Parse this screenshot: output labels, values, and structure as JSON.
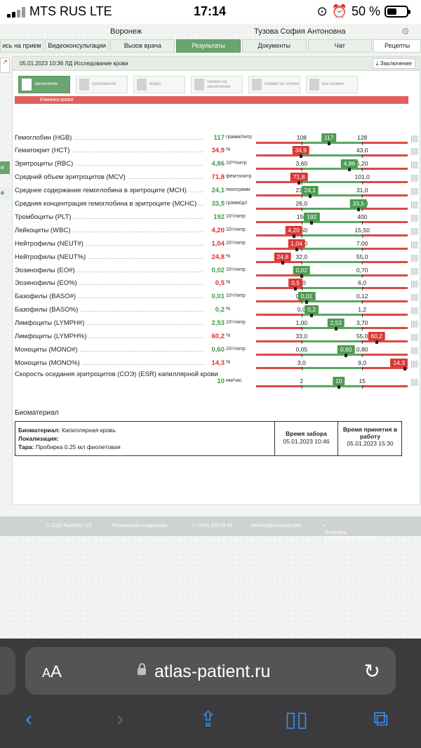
{
  "status": {
    "carrier": "MTS RUS  LTE",
    "time": "17:14",
    "battery": "50 %",
    "battery_level": 0.5
  },
  "header": {
    "city": "Воронеж",
    "user": "Тузова София Антоновна"
  },
  "nav": [
    "ись на прием",
    "Видеоконсультации",
    "Вызов врача",
    "Результаты",
    "Документы",
    "Чат",
    "Рецепты"
  ],
  "panel": {
    "title": "05.01.2023 10:36 ЛД Исследование крови",
    "conclusion_btn": "Заключение",
    "tabs": [
      "заключение",
      "приложения",
      "видео",
      "снимки на заключении",
      "снимки на пленке",
      "все снимки"
    ],
    "section": "Клиника крови"
  },
  "rows": [
    {
      "name": "Гемоглобин (HGB)",
      "value": "117",
      "unit": "грамм/литр",
      "status": "green",
      "low": "108",
      "high": "128"
    },
    {
      "name": "Гематокрит (HCT)",
      "value": "34,9",
      "unit": "%",
      "status": "red",
      "low": "35,0",
      "high": "43,0"
    },
    {
      "name": "Эритроциты (RBC)",
      "value": "4,86",
      "unit": "10¹²/литр",
      "status": "green",
      "low": "3,60",
      "high": "5,20"
    },
    {
      "name": "Средний объем эритроцитов (MCV)",
      "value": "71,8",
      "unit": "фемтолитр",
      "status": "red",
      "low": "73,0",
      "high": "101,0"
    },
    {
      "name": "Среднее содержание гемоглобина в эритроците (MCH)",
      "value": "24,1",
      "unit": "пикограмм",
      "status": "green",
      "low": "23,0",
      "high": "31,0"
    },
    {
      "name": "Средняя концентрация гемоглобина в эритроците (MCHC)",
      "value": "33,5",
      "unit": "грамм/дл",
      "status": "green",
      "low": "26,0",
      "high": "34,0"
    },
    {
      "name": "Тромбоциты (PLT)",
      "value": "192",
      "unit": "10⁹/литр",
      "status": "green",
      "low": "150",
      "high": "400"
    },
    {
      "name": "Лейкоциты (WBC)",
      "value": "4,20",
      "unit": "10⁹/литр",
      "status": "red",
      "low": "5,50",
      "high": "15,50"
    },
    {
      "name": "Нейтрофилы (NEUT#)",
      "value": "1,04",
      "unit": "10⁹/литр",
      "status": "red",
      "low": "1,50",
      "high": "7,00"
    },
    {
      "name": "Нейтрофилы (NEUT%)",
      "value": "24,8",
      "unit": "%",
      "status": "red",
      "low": "32,0",
      "high": "55,0"
    },
    {
      "name": "Эозинофилы (EO#)",
      "value": "0,02",
      "unit": "10⁹/литр",
      "status": "green",
      "low": "0,02",
      "high": "0,70"
    },
    {
      "name": "Эозинофилы (EO%)",
      "value": "0,5",
      "unit": "%",
      "status": "red",
      "low": "1,0",
      "high": "6,0"
    },
    {
      "name": "Базофилы (BASO#)",
      "value": "0,01",
      "unit": "10⁹/литр",
      "status": "green",
      "low": "0,00",
      "high": "0,12"
    },
    {
      "name": "Базофилы (BASO%)",
      "value": "0,2",
      "unit": "%",
      "status": "green",
      "low": "0,0",
      "high": "1,2"
    },
    {
      "name": "Лимфоциты (LYMPH#)",
      "value": "2,53",
      "unit": "10⁹/литр",
      "status": "green",
      "low": "1,00",
      "high": "3,70"
    },
    {
      "name": "Лимфоциты (LYMPH%)",
      "value": "60,2",
      "unit": "%",
      "status": "red",
      "low": "33,0",
      "high": "55,0"
    },
    {
      "name": "Моноциты (MONO#)",
      "value": "0,60",
      "unit": "10⁹/литр",
      "status": "green",
      "low": "0,05",
      "high": "0,80"
    },
    {
      "name": "Моноциты (MONO%)",
      "value": "14,3",
      "unit": "%",
      "status": "red",
      "low": "3,0",
      "high": "9,0"
    }
  ],
  "esr": {
    "name": "Скорость оседания эритроцитов (СОЭ) (ESR) капиллярной крови",
    "value": "10",
    "unit": "мм/час",
    "status": "green",
    "low": "2",
    "high": "15"
  },
  "biomaterial": {
    "title": "Биоматериал",
    "material_label": "Биоматериал:",
    "material_value": "Капиллярная кровь",
    "localization_label": "Локализация:",
    "container_label": "Тара:",
    "container_value": "Пробирка 0.25 мл фиолетовая",
    "collect_label": "Время забора",
    "collect_time": "05.01.2023 10:46",
    "accept_label": "Время принятия в работу",
    "accept_time": "05.01.2023 15:30"
  },
  "footer": [
    "© 2023 Numedy LLC",
    "Техническая поддержка:",
    "+7 (800) 333 09 09",
    "develop@numedy.com",
    "Политика конфиденциальности"
  ],
  "browser": {
    "aa": "AA",
    "host": "atlas-patient.ru"
  },
  "colors": {
    "accent_green": "#6aa46e",
    "normal": "#3e9a44",
    "abnormal": "#d9302c",
    "link_blue": "#3a8cf6"
  }
}
